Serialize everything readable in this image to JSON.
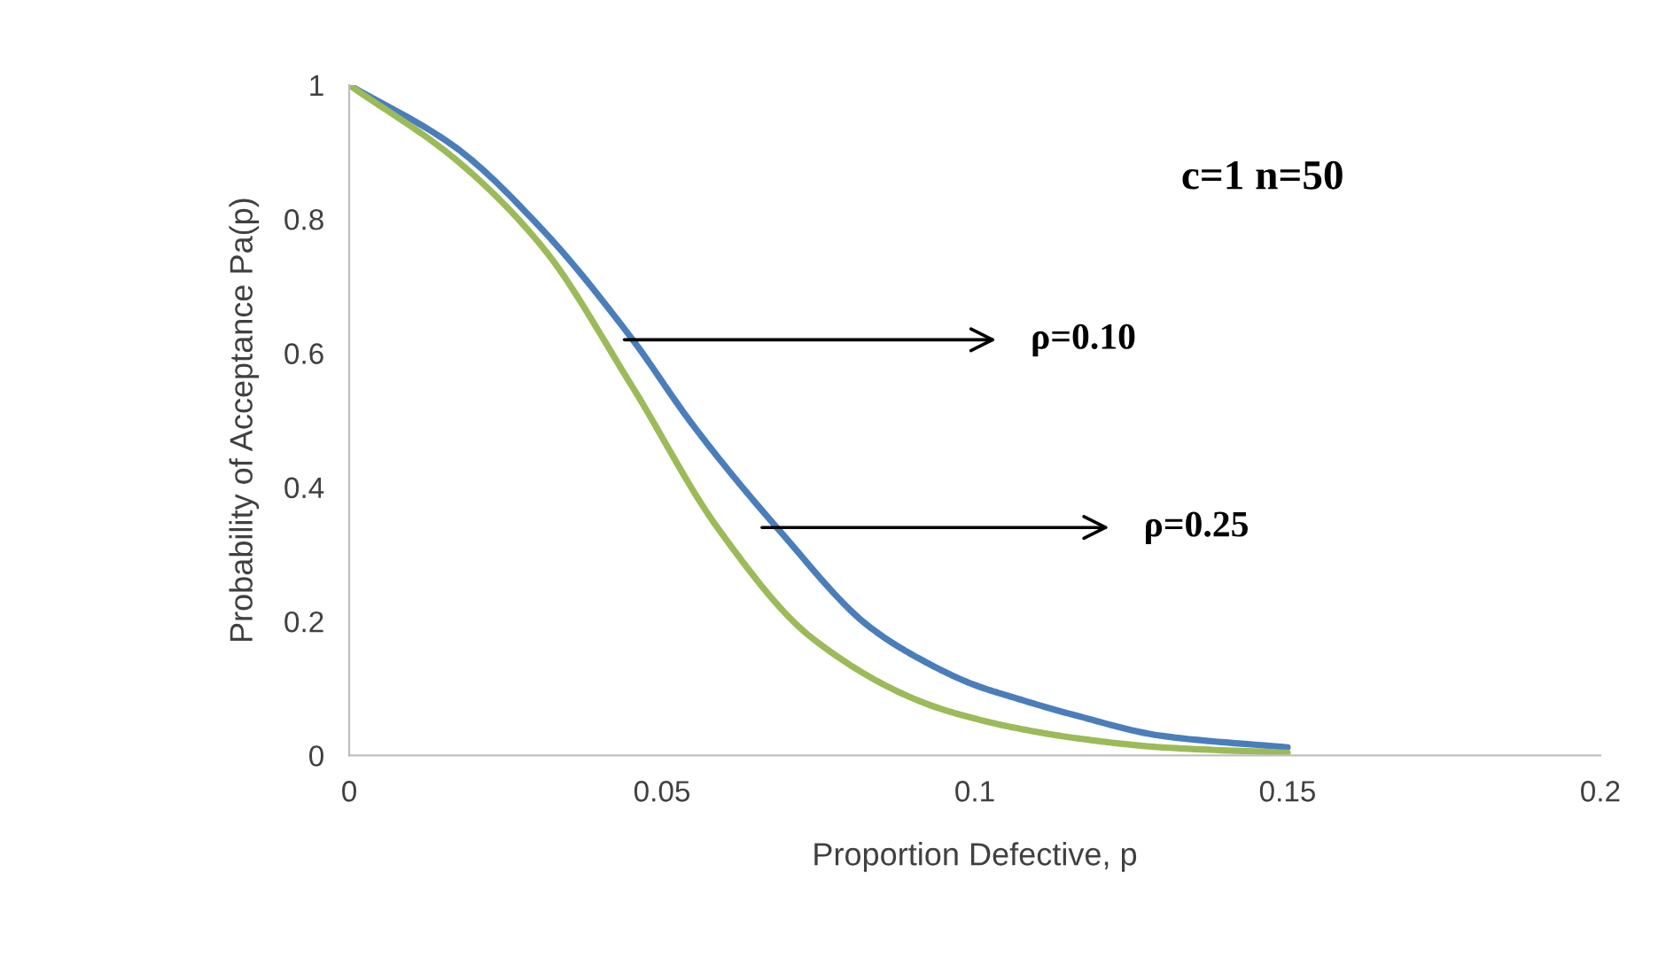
{
  "chart_data": {
    "type": "line",
    "xlabel": "Proportion Defective, p",
    "ylabel": "Probability of Acceptance Pa(p)",
    "xlim": [
      0,
      0.2
    ],
    "xticks": [
      0,
      0.05,
      0.1,
      0.15,
      0.2
    ],
    "ylim": [
      0,
      1
    ],
    "yticks": [
      0,
      0.2,
      0.4,
      0.6,
      0.8,
      1
    ],
    "grid": false,
    "marker": "none",
    "line_style": "solid",
    "series": [
      {
        "color": "#4a7ebb",
        "x": [
          0,
          0.017,
          0.031,
          0.045,
          0.055,
          0.069,
          0.083,
          0.092,
          0.1,
          0.106,
          0.116,
          0.13,
          0.15
        ],
        "values": [
          1,
          0.907,
          0.783,
          0.624,
          0.492,
          0.333,
          0.193,
          0.14,
          0.105,
          0.087,
          0.06,
          0.029,
          0.012
        ]
      },
      {
        "color": "#9bbb59",
        "x": [
          0,
          0.017,
          0.031,
          0.045,
          0.059,
          0.074,
          0.092,
          0.1,
          0.106,
          0.116,
          0.13,
          0.15
        ],
        "values": [
          1,
          0.889,
          0.757,
          0.554,
          0.338,
          0.175,
          0.078,
          0.055,
          0.042,
          0.026,
          0.012,
          0.004
        ]
      }
    ],
    "annotations": [
      "c=1 n=50",
      {
        "text": "ρ=0.10",
        "x": 0.044,
        "y": 0.62
      },
      {
        "text": "ρ=0.25",
        "x": 0.066,
        "y": 0.34
      }
    ]
  }
}
